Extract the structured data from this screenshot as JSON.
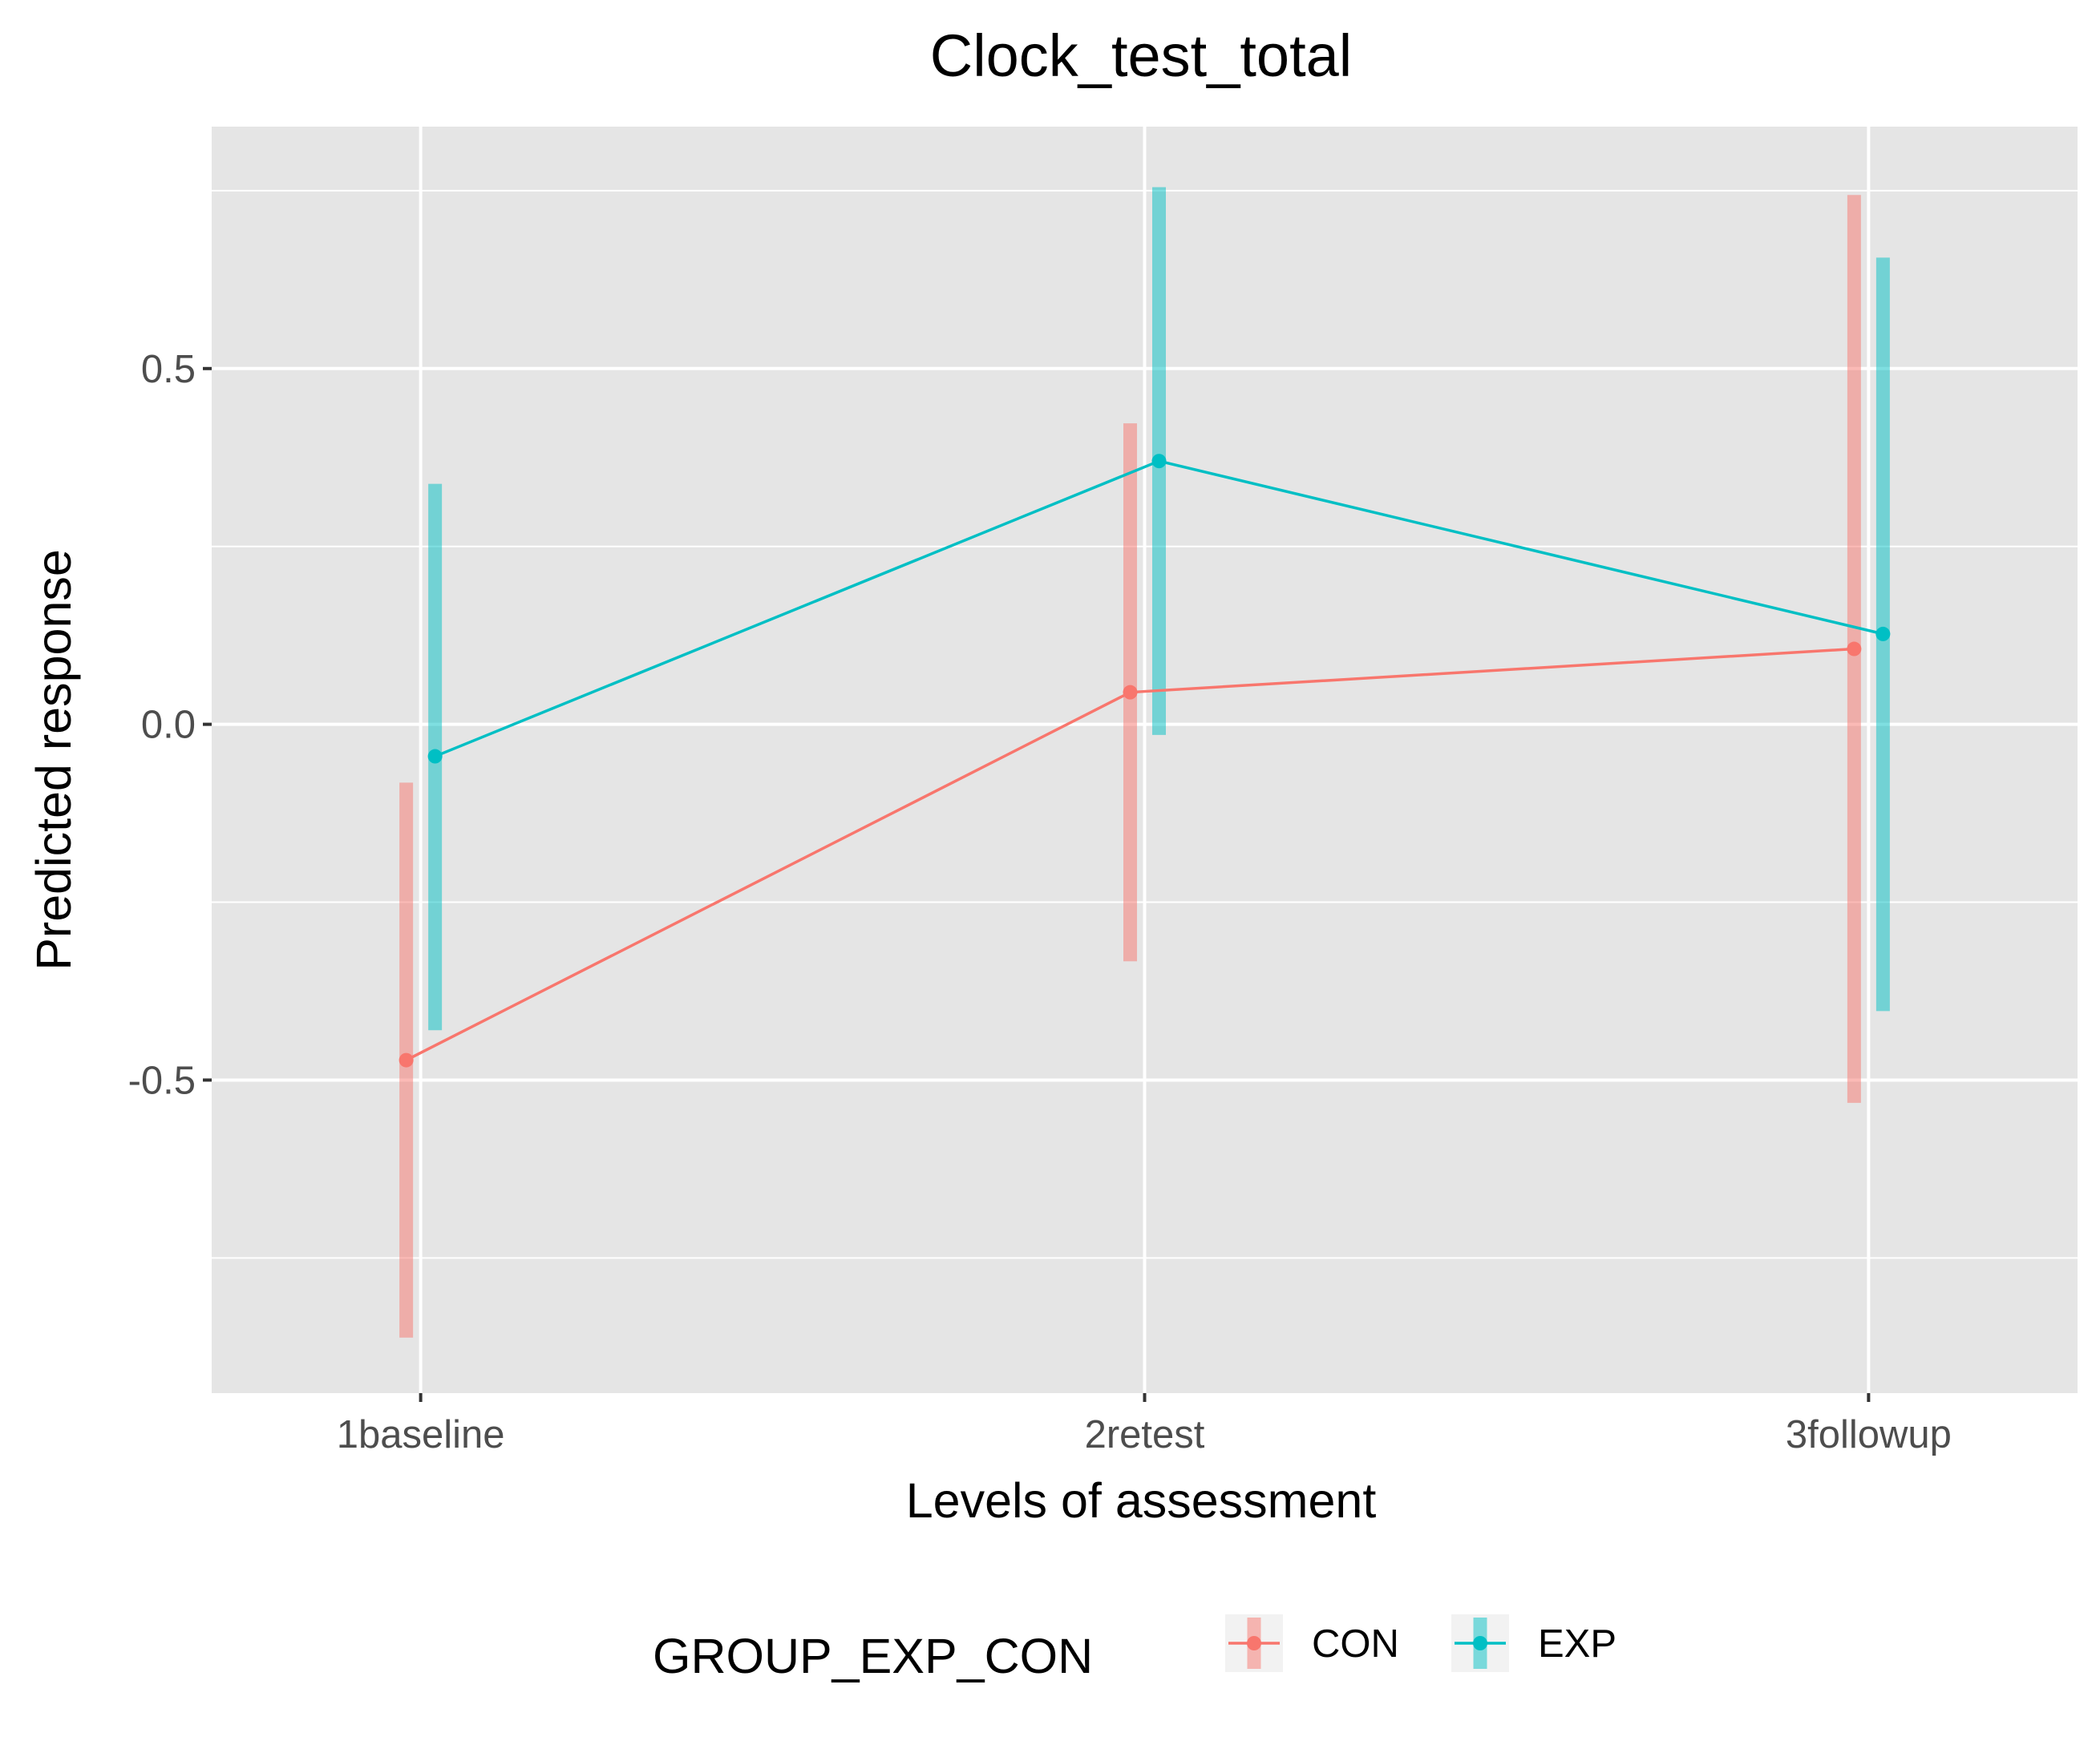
{
  "chart_data": {
    "type": "line",
    "title": "Clock_test_total",
    "xlabel": "Levels of assessment",
    "ylabel": "Predicted response",
    "categories": [
      "1baseline",
      "2retest",
      "3followup"
    ],
    "ylim": [
      -0.94,
      0.84
    ],
    "yticks": [
      -0.5,
      0.0,
      0.5
    ],
    "ytick_labels": [
      "-0.5",
      "0.0",
      "0.5"
    ],
    "grid": true,
    "legend_position": "bottom",
    "legend_title": "GROUP_EXP_CON",
    "series": [
      {
        "name": "CON",
        "color": "#F8766D",
        "values": [
          -0.472,
          0.045,
          0.106
        ],
        "lower": [
          -0.862,
          -0.333,
          -0.532
        ],
        "upper": [
          -0.082,
          0.423,
          0.744
        ]
      },
      {
        "name": "EXP",
        "color": "#00BFC4",
        "values": [
          -0.045,
          0.37,
          0.127
        ],
        "lower": [
          -0.43,
          -0.015,
          -0.403
        ],
        "upper": [
          0.338,
          0.755,
          0.656
        ]
      }
    ]
  }
}
